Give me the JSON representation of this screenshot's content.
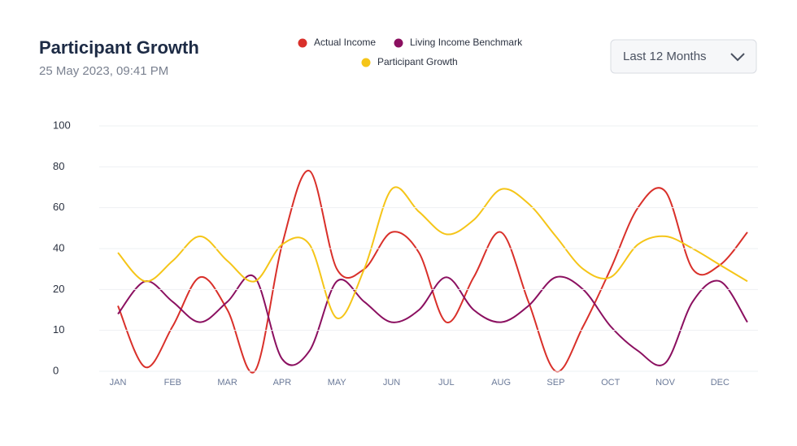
{
  "chart_data": {
    "type": "line",
    "title": "Participant Growth",
    "subtitle": "25 May 2023, 09:41 PM",
    "categories": [
      "JAN",
      null,
      "FEB",
      null,
      "MAR",
      null,
      "APR",
      null,
      "MAY",
      null,
      "JUN",
      null,
      "JUL",
      null,
      "AUG",
      null,
      "SEP",
      null,
      "OCT",
      null,
      "NOV",
      null,
      "DEC",
      null
    ],
    "series": [
      {
        "name": "Actual Income",
        "color": "#d9302a",
        "values": [
          16,
          1,
          11,
          26,
          15,
          0,
          42,
          78,
          30,
          30,
          48,
          38,
          12,
          26,
          48,
          17,
          0,
          11,
          30,
          60,
          68,
          30,
          32,
          48
        ]
      },
      {
        "name": "Living Income Benchmark",
        "color": "#8b1060",
        "values": [
          14,
          24,
          17,
          12,
          17,
          26,
          3,
          5,
          24,
          17,
          12,
          15,
          26,
          15,
          12,
          16,
          26,
          20,
          11,
          5,
          2,
          17,
          24,
          12
        ]
      },
      {
        "name": "Participant Growth",
        "color": "#f5c518",
        "values": [
          38,
          24,
          34,
          46,
          34,
          24,
          42,
          42,
          13,
          30,
          69,
          58,
          47,
          54,
          69,
          62,
          46,
          30,
          26,
          42,
          46,
          40,
          32,
          24
        ]
      }
    ],
    "ylim": [
      0,
      100
    ],
    "yticks": [
      0,
      10,
      20,
      40,
      60,
      80,
      100
    ],
    "grid": true
  },
  "controls": {
    "period": "Last 12 Months"
  }
}
